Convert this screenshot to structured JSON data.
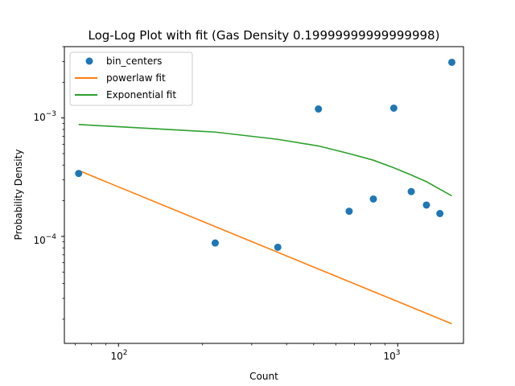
{
  "chart_data": {
    "type": "scatter",
    "title": "Log-Log Plot with fit (Gas Density 0.19999999999999998)",
    "xlabel": "Count",
    "ylabel": "Probability Density",
    "xscale": "log",
    "yscale": "log",
    "xlim": [
      64,
      1720
    ],
    "ylim": [
      1.25e-05,
      0.004
    ],
    "grid": false,
    "legend_position": "top-left",
    "x_ticks": [
      {
        "value": 100,
        "mantissa": "10",
        "exponent": "2"
      },
      {
        "value": 1000,
        "mantissa": "10",
        "exponent": "3"
      }
    ],
    "y_ticks": [
      {
        "value": 0.0001,
        "mantissa": "10",
        "exponent": "−4"
      },
      {
        "value": 0.001,
        "mantissa": "10",
        "exponent": "−3"
      }
    ],
    "series": [
      {
        "name": "bin_centers",
        "kind": "scatter",
        "color": "#1f77b4",
        "x": [
          72,
          222,
          372,
          520,
          670,
          818,
          968,
          1118,
          1267,
          1416,
          1562
        ],
        "y": [
          0.00034,
          8.8e-05,
          8.1e-05,
          0.00119,
          0.000163,
          0.000207,
          0.00121,
          0.000239,
          0.000184,
          0.000156,
          0.00295
        ]
      },
      {
        "name": "powerlaw fit",
        "kind": "line",
        "color": "#ff7f0e",
        "x": [
          72,
          1562
        ],
        "y": [
          0.00036,
          1.83e-05
        ]
      },
      {
        "name": "Exponential fit",
        "kind": "line",
        "color": "#2ca02c",
        "x": [
          72,
          222,
          372,
          520,
          670,
          818,
          968,
          1118,
          1267,
          1416,
          1562
        ],
        "y": [
          0.00088,
          0.00076,
          0.00066,
          0.00058,
          0.0005,
          0.00044,
          0.00038,
          0.00033,
          0.00029,
          0.00025,
          0.00022
        ]
      }
    ]
  }
}
